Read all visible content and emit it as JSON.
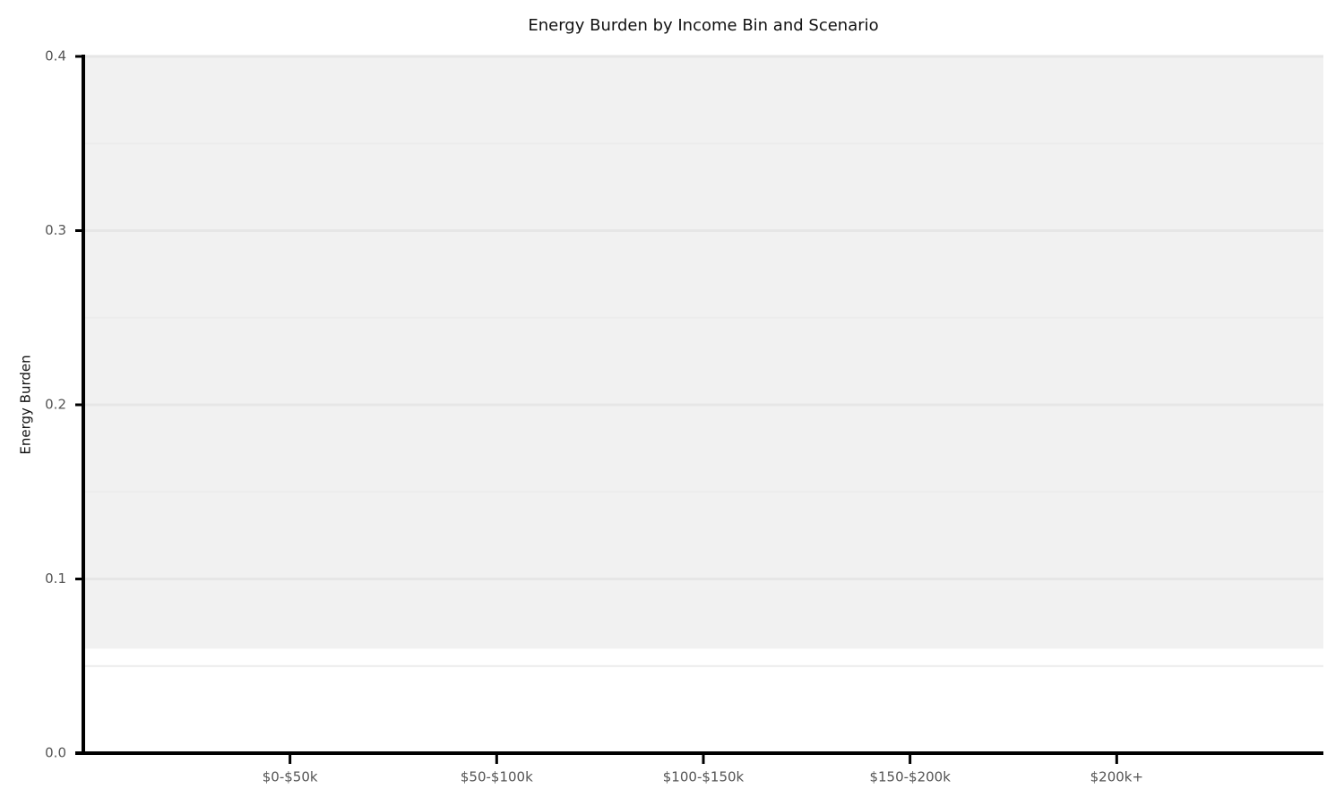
{
  "chart_data": {
    "type": "bar",
    "title": "Energy Burden by Income Bin and Scenario",
    "y_label": "Energy Burden",
    "categories": [
      "$0-$50k",
      "$50-$100k",
      "$100-$150k",
      "$150-$200k",
      "$200k+"
    ],
    "ylim": [
      0,
      0.4
    ],
    "yticks": [
      {
        "value": 0,
        "label": "0.0"
      },
      0.1,
      0.2,
      0.3,
      0.4
    ],
    "minor_yticks": [
      0.05,
      0.15,
      0.25,
      0.35
    ],
    "grid": true,
    "shaded_band": {
      "from": 0.06,
      "to": 0.4,
      "color": "#f1f1f1"
    }
  }
}
